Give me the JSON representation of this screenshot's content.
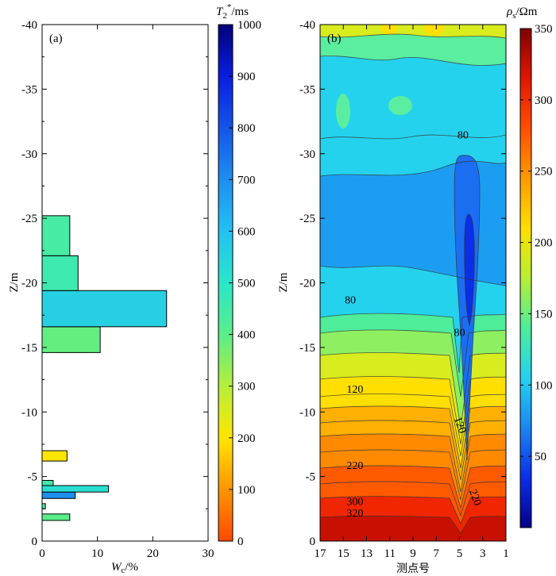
{
  "chart_data": [
    {
      "type": "bar",
      "orientation": "horizontal",
      "panel_label": "(a)",
      "xlabel_main": "W",
      "xlabel_sub": "c",
      "xlabel_unit": "/%",
      "ylabel": "Z/m",
      "xlim": [
        0,
        30
      ],
      "ylim": [
        0,
        -40
      ],
      "xticks": [
        "0",
        "10",
        "20",
        "30"
      ],
      "yticks": [
        "0",
        "-5",
        "-10",
        "-15",
        "-20",
        "-25",
        "-30",
        "-35",
        "-40"
      ],
      "bars": [
        {
          "z_top": -1.6,
          "z_bottom": -2.1,
          "value": 5.0,
          "t2": 400
        },
        {
          "z_top": -2.5,
          "z_bottom": -2.9,
          "value": 0.6,
          "t2": 440
        },
        {
          "z_top": -3.3,
          "z_bottom": -3.8,
          "value": 6.0,
          "t2": 700
        },
        {
          "z_top": -3.8,
          "z_bottom": -4.3,
          "value": 12.0,
          "t2": 520
        },
        {
          "z_top": -4.3,
          "z_bottom": -4.7,
          "value": 2.0,
          "t2": 450
        },
        {
          "z_top": -6.2,
          "z_bottom": -7.0,
          "value": 4.5,
          "t2": 200
        },
        {
          "z_top": -14.6,
          "z_bottom": -16.6,
          "value": 10.5,
          "t2": 390
        },
        {
          "z_top": -16.6,
          "z_bottom": -19.4,
          "value": 22.5,
          "t2": 560
        },
        {
          "z_top": -19.4,
          "z_bottom": -22.1,
          "value": 6.5,
          "t2": 460
        },
        {
          "z_top": -22.1,
          "z_bottom": -25.2,
          "value": 5.0,
          "t2": 440
        }
      ],
      "colorbar": {
        "title_main": "T",
        "title_sub": "2",
        "title_sup": "*",
        "title_unit": "/ms",
        "range": [
          0,
          1000
        ],
        "ticks": [
          "0",
          "100",
          "200",
          "300",
          "400",
          "500",
          "600",
          "700",
          "800",
          "900",
          "1000"
        ]
      }
    },
    {
      "type": "heatmap",
      "subtype": "contour",
      "panel_label": "(b)",
      "xlabel": "测点号",
      "ylabel": "Z/m",
      "xticks": [
        "17",
        "15",
        "13",
        "11",
        "9",
        "7",
        "5",
        "3",
        "1"
      ],
      "yticks": [
        "0",
        "-5",
        "-10",
        "-15",
        "-20",
        "-25",
        "-30",
        "-35",
        "-40"
      ],
      "xlim": [
        17,
        1
      ],
      "ylim": [
        0,
        -40
      ],
      "contour_labels": [
        {
          "text": "80",
          "x": 4.7,
          "z": -31.5
        },
        {
          "text": "80",
          "x": 14.4,
          "z": -18.7
        },
        {
          "text": "80",
          "x": 5.0,
          "z": -16.2
        },
        {
          "text": "120",
          "x": 14.0,
          "z": -11.8
        },
        {
          "text": "120",
          "x": 4.9,
          "z": -9.0
        },
        {
          "text": "220",
          "x": 14.0,
          "z": -5.9
        },
        {
          "text": "300",
          "x": 14.0,
          "z": -3.1
        },
        {
          "text": "320",
          "x": 14.0,
          "z": -2.2
        },
        {
          "text": "220",
          "x": 3.6,
          "z": -3.4
        }
      ],
      "colorbar": {
        "title_main": "ρ",
        "title_sub": "s",
        "title_unit": "/Ωm",
        "range": [
          0,
          350
        ],
        "ticks": [
          "50",
          "100",
          "150",
          "200",
          "250",
          "300",
          "350"
        ]
      }
    }
  ]
}
